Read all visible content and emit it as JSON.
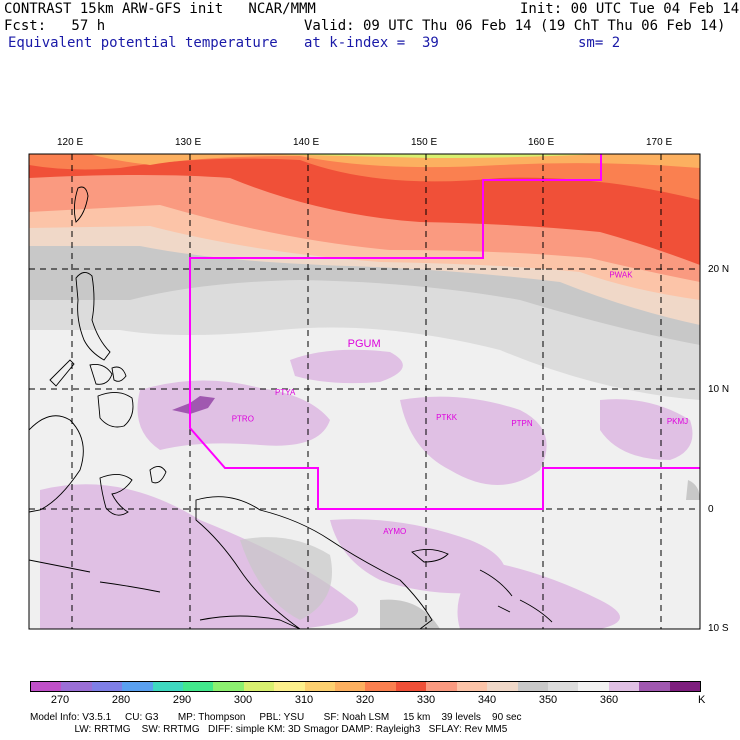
{
  "header": {
    "model_line": "CONTRAST 15km ARW-GFS init   NCAR/MMM",
    "init": "Init: 00 UTC Tue 04 Feb 14",
    "fcst": "Fcst:   57 h",
    "valid": "Valid: 09 UTC Thu 06 Feb 14 (19 ChT Thu 06 Feb 14)",
    "field": "Equivalent potential temperature",
    "level": "at k-index =  39",
    "smooth": "sm= 2"
  },
  "map": {
    "lon_labels": [
      "120 E",
      "130 E",
      "140 E",
      "150 E",
      "160 E",
      "170 E"
    ],
    "lat_labels": [
      "20 N",
      "10 N",
      "0",
      "10 S"
    ],
    "stations": [
      {
        "name": "PGUM",
        "lon": 144.8,
        "lat": 13.5
      },
      {
        "name": "PTYA",
        "lon": 138.1,
        "lat": 9.5
      },
      {
        "name": "PTRO",
        "lon": 134.5,
        "lat": 7.3
      },
      {
        "name": "PTKK",
        "lon": 151.8,
        "lat": 7.4
      },
      {
        "name": "PTPN",
        "lon": 158.2,
        "lat": 6.9
      },
      {
        "name": "PKMJ",
        "lon": 171.4,
        "lat": 7.1
      },
      {
        "name": "PWAK",
        "lon": 166.6,
        "lat": 19.3
      },
      {
        "name": "AYMO",
        "lon": 147.4,
        "lat": -2.1
      }
    ],
    "colors": {
      "boundary": "#ff00ff",
      "station_text": "#dd00dd"
    }
  },
  "colorbar": {
    "labels": [
      "270",
      "280",
      "290",
      "300",
      "310",
      "320",
      "330",
      "340",
      "350",
      "360"
    ],
    "unit": "K",
    "colors": [
      "#c050c8",
      "#9b6fd6",
      "#7f7fe6",
      "#5aa0f0",
      "#3ed8c0",
      "#42e88c",
      "#8cf070",
      "#d8f070",
      "#fcf08c",
      "#fcd070",
      "#fcb060",
      "#fa8050",
      "#f05038",
      "#fa9a80",
      "#fcc4a8",
      "#f0d8c8",
      "#c8c8c8",
      "#dcdcdc",
      "#f2f2f2",
      "#e0c0e4",
      "#a058b0",
      "#7e1e7e"
    ]
  },
  "info": {
    "line1": "Model Info: V3.5.1     CU: G3       MP: Thompson     PBL: YSU       SF: Noah LSM     15 km    39 levels    90 sec",
    "line2": "                LW: RRTMG    SW: RRTMG   DIFF: simple KM: 3D Smagor DAMP: Rayleigh3   SFLAY: Rev MM5"
  }
}
